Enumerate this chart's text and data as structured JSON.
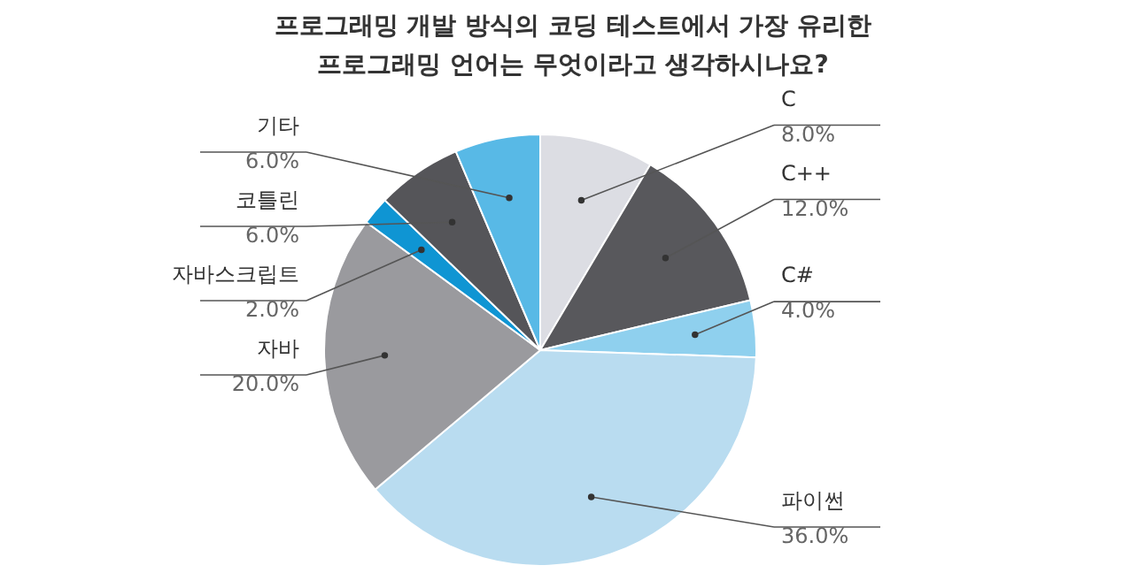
{
  "chart_data": {
    "type": "pie",
    "title": "프로그래밍 개발 방식의 코딩 테스트에서 가장 유리한\n프로그래밍 언어는 무엇이라고 생각하시나요?",
    "categories": [
      "C",
      "C++",
      "C#",
      "파이썬",
      "자바",
      "자바스크립트",
      "코틀린",
      "기타"
    ],
    "values": [
      8,
      12,
      4,
      36,
      20,
      2,
      6,
      6
    ],
    "value_labels": [
      "8.0%",
      "12.0%",
      "4.0%",
      "36.0%",
      "20.0%",
      "2.0%",
      "6.0%",
      "6.0%"
    ],
    "colors": [
      "#dcdde3",
      "#58585c",
      "#8fd0ee",
      "#b9dcf0",
      "#9a9a9e",
      "#0f95d3",
      "#555559",
      "#58b9e6"
    ]
  }
}
